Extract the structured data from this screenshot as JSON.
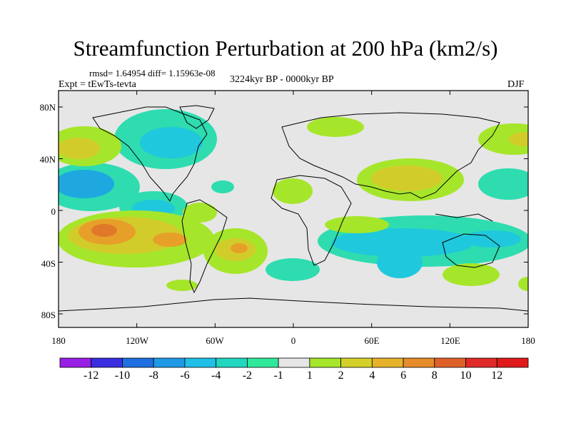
{
  "title": "Streamfunction Perturbation at 200 hPa (km2/s)",
  "stats": "rmsd= 1.64954 diff= 1.15963e-08",
  "experiment": "Expt = tEwTs-tevta",
  "period": "3224kyr BP - 0000kyr BP",
  "season": "DJF",
  "lat_labels": [
    "80N",
    "40N",
    "0",
    "40S",
    "80S"
  ],
  "lon_labels": [
    "180",
    "120W",
    "60W",
    "0",
    "60E",
    "120E",
    "180"
  ],
  "colorbar": {
    "labels": [
      "-12",
      "-10",
      "-8",
      "-6",
      "-4",
      "-2",
      "-1",
      "1",
      "2",
      "4",
      "6",
      "8",
      "10",
      "12"
    ],
    "colors": [
      "#9a1fe6",
      "#3a2ee0",
      "#1f6fe0",
      "#1e99e6",
      "#20c0e6",
      "#22d6c0",
      "#30e89a",
      "#e6e6e6",
      "#a6e62a",
      "#d4d02a",
      "#e6b22a",
      "#e68c2a",
      "#e0602a",
      "#e02a2a",
      "#e01a1a"
    ]
  },
  "map_colors": {
    "background": "#e6e6e6",
    "neg_weak": "#2edcb0",
    "neg_mid": "#1fc8dc",
    "neg_strong": "#1fa8e0",
    "pos_weak": "#a6e62a",
    "pos_mid": "#d2cc2a",
    "pos_strong": "#e6a02a",
    "pos_max": "#e0782a"
  }
}
